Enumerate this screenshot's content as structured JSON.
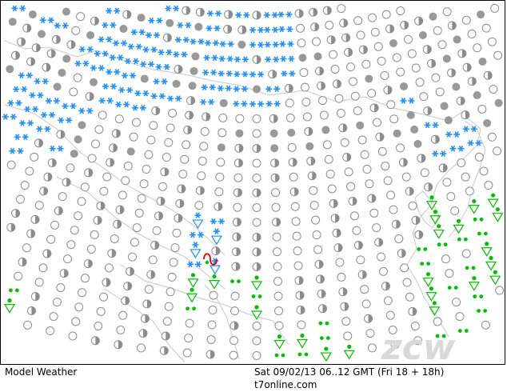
{
  "footer": {
    "product": "Model Weather",
    "valid_time": "Sat 09/02/13 06..12 GMT (Fri 18 + 18h)",
    "site": "t7online.com"
  },
  "watermark": "zcw",
  "symbol_colors": {
    "clear": "#8c8c8c",
    "partly": "#8c8c8c",
    "overcast": "#999999",
    "snow": "#1e90ff",
    "rain": "#00c000",
    "storm": "#e00000",
    "coast": "#c8c8c8",
    "watermark": "#d9d9d9"
  },
  "legend_symbols": [
    "clear",
    "partly-cloudy",
    "overcast",
    "snow",
    "snow-shower",
    "rain-drizzle",
    "rain-shower",
    "thunderstorm"
  ]
}
